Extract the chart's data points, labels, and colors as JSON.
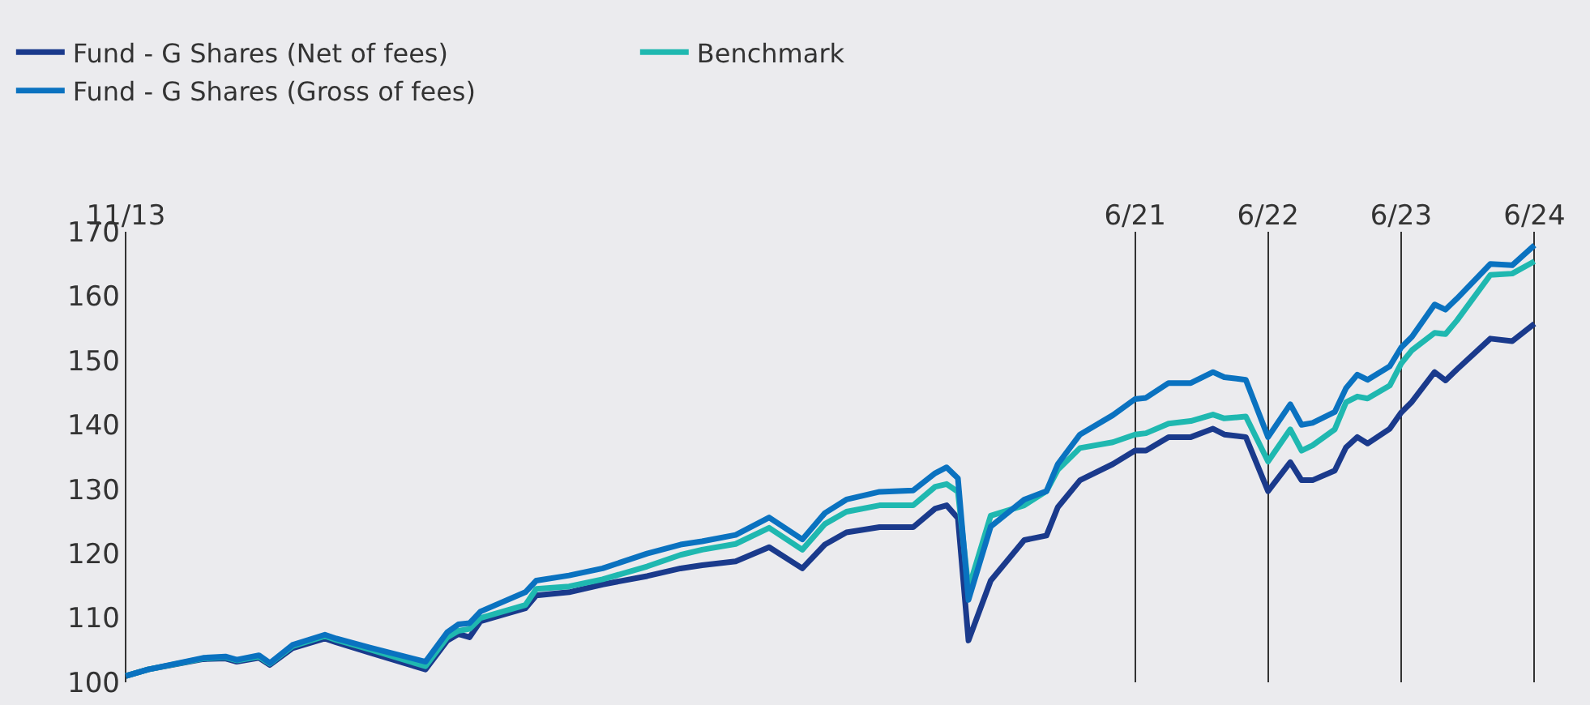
{
  "chart_data": {
    "type": "line",
    "x": [
      "2013-11",
      "2014-01",
      "2014-06",
      "2014-08",
      "2014-09",
      "2014-11",
      "2014-12",
      "2015-02",
      "2015-05",
      "2015-06",
      "2015-09",
      "2016-02",
      "2016-04",
      "2016-05",
      "2016-06",
      "2016-07",
      "2016-11",
      "2016-12",
      "2017-03",
      "2017-06",
      "2017-10",
      "2018-01",
      "2018-03",
      "2018-06",
      "2018-09",
      "2018-12",
      "2019-02",
      "2019-04",
      "2019-07",
      "2019-10",
      "2019-12",
      "2020-01",
      "2020-02",
      "2020-03",
      "2020-05",
      "2020-08",
      "2020-10",
      "2020-11",
      "2021-01",
      "2021-04",
      "2021-06",
      "2021-07",
      "2021-09",
      "2021-11",
      "2022-01",
      "2022-02",
      "2022-04",
      "2022-06",
      "2022-08",
      "2022-09",
      "2022-10",
      "2022-12",
      "2023-01",
      "2023-02",
      "2023-03",
      "2023-05",
      "2023-06",
      "2023-07",
      "2023-09",
      "2023-10",
      "2023-11",
      "2024-02",
      "2024-04",
      "2024-06"
    ],
    "series": [
      {
        "name": "Fund - G Shares (Net of fees)",
        "color": "#1a3a8c",
        "values": [
          101,
          102,
          103.6,
          103.7,
          103.2,
          103.8,
          102.7,
          105.3,
          106.8,
          106.2,
          104.6,
          102,
          106.5,
          107.5,
          107,
          109.5,
          111.5,
          113.5,
          114,
          115.2,
          116.5,
          117.7,
          118.2,
          118.8,
          121,
          117.7,
          121.4,
          123.3,
          124.1,
          124.1,
          127,
          127.5,
          125.5,
          106.5,
          115.8,
          122.1,
          122.8,
          127.2,
          131.4,
          133.9,
          136,
          136,
          138.1,
          138.1,
          139.4,
          138.5,
          138.1,
          129.7,
          134.2,
          131.4,
          131.4,
          132.9,
          136.5,
          138.1,
          137.1,
          139.4,
          141.9,
          143.6,
          148.2,
          146.9,
          148.6,
          153.4,
          153,
          155.7
        ]
      },
      {
        "name": "Benchmark",
        "color": "#1fb8b0",
        "values": [
          101,
          102,
          103.7,
          103.9,
          103.4,
          104,
          102.9,
          105.6,
          107.2,
          106.6,
          105.1,
          102.5,
          107,
          108,
          108.3,
          110,
          112,
          114.5,
          114.9,
          116,
          118,
          119.8,
          120.6,
          121.5,
          124,
          120.6,
          124.6,
          126.5,
          127.5,
          127.5,
          130.4,
          130.8,
          129.6,
          114.5,
          125.9,
          127.5,
          129.7,
          133,
          136.4,
          137.3,
          138.5,
          138.7,
          140.2,
          140.6,
          141.6,
          141,
          141.3,
          134.3,
          139.3,
          136,
          136.8,
          139.3,
          143.5,
          144.4,
          144.1,
          146.1,
          149.5,
          151.6,
          154.3,
          154.1,
          156.2,
          163.3,
          163.5,
          165.4
        ]
      },
      {
        "name": "Fund - G Shares (Gross of fees)",
        "color": "#0a72c0",
        "values": [
          101,
          102,
          103.8,
          104,
          103.5,
          104.2,
          103,
          105.8,
          107.4,
          106.8,
          105.4,
          103.2,
          107.8,
          109,
          109.2,
          111,
          114,
          115.8,
          116.6,
          117.7,
          120,
          121.4,
          121.9,
          122.9,
          125.6,
          122.2,
          126.3,
          128.4,
          129.6,
          129.8,
          132.5,
          133.4,
          131.7,
          112.8,
          124.2,
          128.4,
          129.7,
          133.9,
          138.5,
          141.5,
          144,
          144.2,
          146.5,
          146.5,
          148.2,
          147.4,
          147,
          138.1,
          143.2,
          140,
          140.3,
          142,
          145.7,
          147.8,
          147,
          149.1,
          152,
          153.7,
          158.7,
          157.9,
          159.6,
          165,
          164.8,
          167.9
        ]
      }
    ],
    "xlim": [
      "2013-10-20",
      "2024-06-20"
    ],
    "ylim": [
      100,
      170
    ],
    "yticks": [
      100,
      110,
      120,
      130,
      140,
      150,
      160,
      170
    ],
    "xticks": [
      {
        "value": "2013-11",
        "label": "11/13"
      },
      {
        "value": "2021-06",
        "label": "6/21"
      },
      {
        "value": "2022-06",
        "label": "6/22"
      },
      {
        "value": "2023-06",
        "label": "6/23"
      },
      {
        "value": "2024-06",
        "label": "6/24"
      }
    ],
    "grid": "x",
    "legend": "top left",
    "marker": "none",
    "line_style": "solid"
  }
}
